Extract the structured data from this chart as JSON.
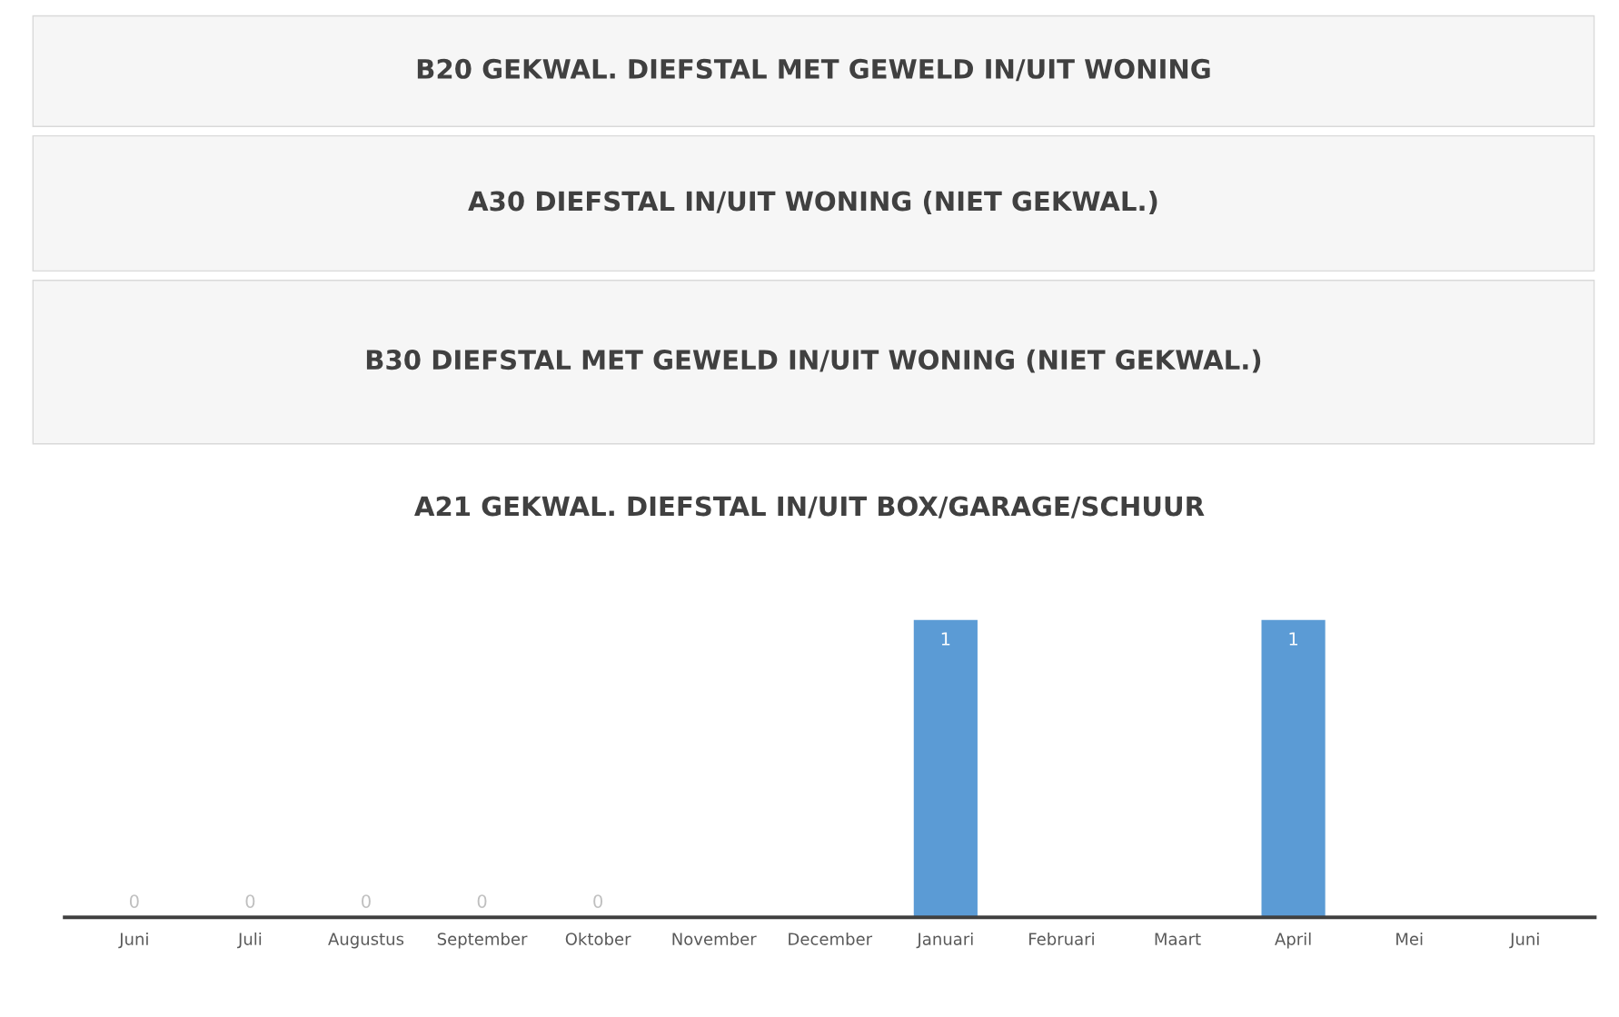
{
  "chart_data": [
    {
      "type": "other",
      "title": "B20 GEKWAL. DIEFSTAL MET GEWELD IN/UIT WONING"
    },
    {
      "type": "other",
      "title": "A30 DIEFSTAL IN/UIT WONING (NIET GEKWAL.)"
    },
    {
      "type": "other",
      "title": "B30 DIEFSTAL MET GEWELD IN/UIT WONING (NIET GEKWAL.)"
    },
    {
      "type": "bar",
      "title": "A21 GEKWAL. DIEFSTAL IN/UIT BOX/GARAGE/SCHUUR",
      "categories": [
        "Juni",
        "Juli",
        "Augustus",
        "September",
        "Oktober",
        "November",
        "December",
        "Januari",
        "Februari",
        "Maart",
        "April",
        "Mei",
        "Juni"
      ],
      "values": [
        0,
        0,
        0,
        0,
        0,
        0,
        0,
        1,
        0,
        0,
        1,
        0,
        0
      ],
      "value_labels": [
        "0",
        "0",
        "0",
        "0",
        "0",
        null,
        null,
        "1",
        null,
        null,
        "1",
        null,
        null
      ],
      "color": "#5b9bd5",
      "grid": false,
      "legend": false
    }
  ]
}
